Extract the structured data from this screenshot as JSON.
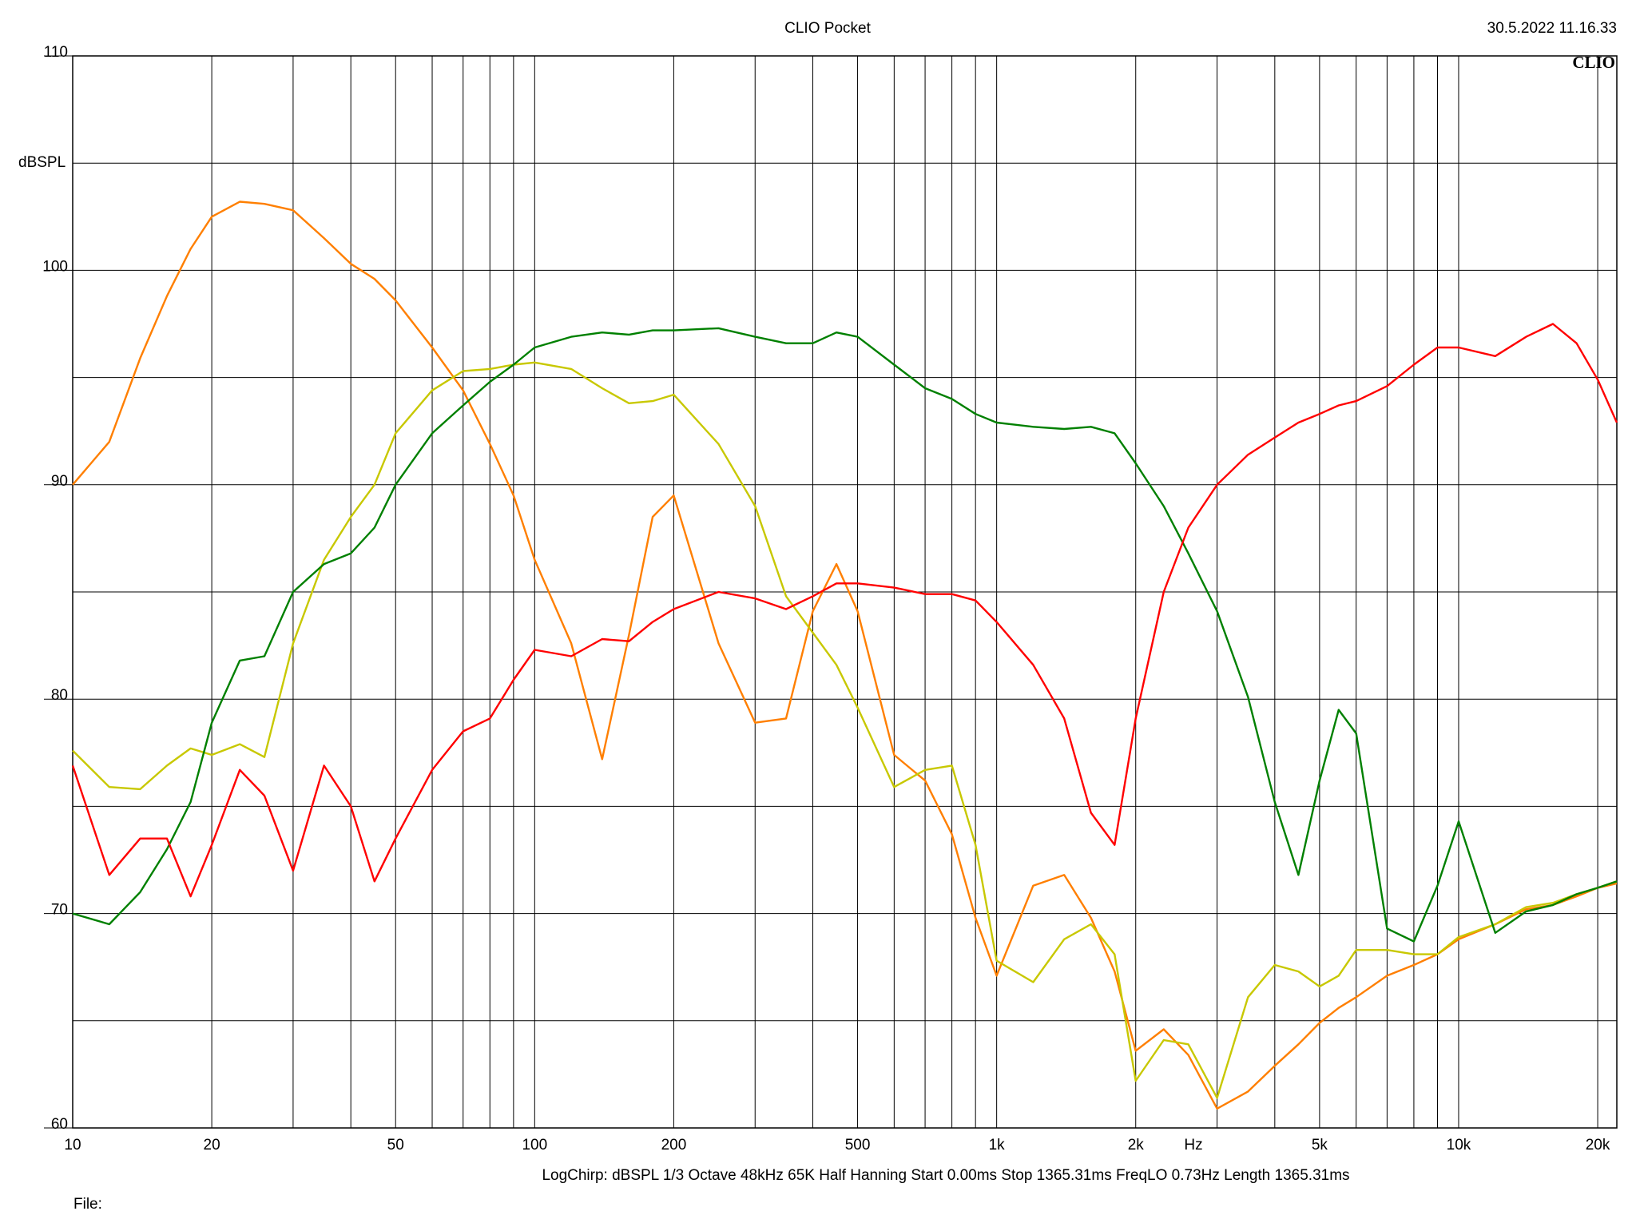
{
  "chart_data": {
    "type": "line",
    "title": "CLIO Pocket",
    "timestamp": "30.5.2022 11.16.33",
    "logo": "CLIO",
    "y_label": "dBSPL",
    "x_unit": "Hz",
    "footer": "LogChirp:  dBSPL   1/3 Octave   48kHz   65K   Half Hanning   Start 0.00ms    Stop 1365.31ms    FreqLO 0.73Hz    Length 1365.31ms",
    "file_label": "File:",
    "log_x": true,
    "grid": true,
    "xlim": [
      10,
      22000
    ],
    "ylim": [
      60,
      110
    ],
    "xticks": [
      10,
      20,
      50,
      100,
      200,
      500,
      {
        "value": 1000,
        "label": "1k"
      },
      {
        "value": 2000,
        "label": "2k"
      },
      {
        "value": 5000,
        "label": "5k"
      },
      {
        "value": 10000,
        "label": "10k"
      },
      {
        "value": 20000,
        "label": "20k"
      }
    ],
    "xminor": [
      30,
      40,
      60,
      70,
      80,
      90,
      300,
      400,
      600,
      700,
      800,
      900,
      3000,
      4000,
      6000,
      7000,
      8000,
      9000
    ],
    "yticks": [
      60,
      70,
      80,
      90,
      100,
      110
    ],
    "yminor": [
      65,
      75,
      85,
      95,
      105
    ],
    "x": [
      10,
      12,
      14,
      16,
      18,
      20,
      23,
      26,
      30,
      35,
      40,
      45,
      50,
      60,
      70,
      80,
      90,
      100,
      120,
      140,
      160,
      180,
      200,
      250,
      300,
      350,
      400,
      450,
      500,
      600,
      700,
      800,
      900,
      1000,
      1200,
      1400,
      1600,
      1800,
      2000,
      2300,
      2600,
      3000,
      3500,
      4000,
      4500,
      5000,
      5500,
      6000,
      7000,
      8000,
      9000,
      10000,
      12000,
      14000,
      16000,
      18000,
      20000,
      22000
    ],
    "series": [
      {
        "color": "#ff7f00",
        "values": [
          90,
          92,
          95.9,
          98.8,
          101,
          102.5,
          103.2,
          103.1,
          102.8,
          101.5,
          100.3,
          99.6,
          98.6,
          96.4,
          94.4,
          91.9,
          89.5,
          86.5,
          82.6,
          77.2,
          83,
          88.5,
          89.5,
          82.6,
          78.9,
          79.1,
          84.1,
          86.3,
          84.1,
          77.4,
          76.2,
          73.7,
          69.8,
          67.1,
          71.3,
          71.8,
          69.8,
          67.3,
          63.6,
          64.6,
          63.4,
          60.9,
          61.7,
          62.9,
          63.9,
          64.9,
          65.6,
          66.1,
          67.1,
          67.6,
          68.1,
          68.8,
          69.5,
          70.2,
          70.4,
          70.8,
          71.2,
          71.4
        ]
      },
      {
        "color": "#c8c800",
        "values": [
          77.6,
          75.9,
          75.8,
          76.9,
          77.7,
          77.4,
          77.9,
          77.3,
          82.6,
          86.5,
          88.5,
          90,
          92.4,
          94.4,
          95.3,
          95.4,
          95.6,
          95.7,
          95.4,
          94.5,
          93.8,
          93.9,
          94.2,
          91.9,
          89,
          84.8,
          83.1,
          81.6,
          79.6,
          75.9,
          76.7,
          76.9,
          73.2,
          67.8,
          66.8,
          68.8,
          69.5,
          68.1,
          62.2,
          64.1,
          63.9,
          61.4,
          66.1,
          67.6,
          67.3,
          66.6,
          67.1,
          68.3,
          68.3,
          68.1,
          68.1,
          68.9,
          69.5,
          70.3,
          70.5,
          70.9,
          71.2,
          71.5
        ]
      },
      {
        "color": "#008000",
        "values": [
          70,
          69.5,
          71,
          73,
          75.2,
          78.9,
          81.8,
          82,
          85,
          86.3,
          86.8,
          88,
          90,
          92.4,
          93.7,
          94.8,
          95.6,
          96.4,
          96.9,
          97.1,
          97,
          97.2,
          97.2,
          97.3,
          96.9,
          96.6,
          96.6,
          97.1,
          96.9,
          95.6,
          94.5,
          94,
          93.3,
          92.9,
          92.7,
          92.6,
          92.7,
          92.4,
          91,
          89,
          86.8,
          84.1,
          80.1,
          75.2,
          71.8,
          76.2,
          79.5,
          78.4,
          69.3,
          68.7,
          71.3,
          74.3,
          69.1,
          70.1,
          70.4,
          70.9,
          71.2,
          71.5
        ]
      },
      {
        "color": "#ff0000",
        "values": [
          76.9,
          71.8,
          73.5,
          73.5,
          70.8,
          73.2,
          76.7,
          75.5,
          72,
          76.9,
          75,
          71.5,
          73.5,
          76.7,
          78.5,
          79.1,
          80.9,
          82.3,
          82,
          82.8,
          82.7,
          83.6,
          84.2,
          85,
          84.7,
          84.2,
          84.8,
          85.4,
          85.4,
          85.2,
          84.9,
          84.9,
          84.6,
          83.6,
          81.6,
          79.1,
          74.7,
          73.2,
          79.1,
          85,
          88,
          90,
          91.4,
          92.2,
          92.9,
          93.3,
          93.7,
          93.9,
          94.6,
          95.6,
          96.4,
          96.4,
          96,
          96.9,
          97.5,
          96.6,
          94.9,
          92.9
        ]
      }
    ]
  }
}
